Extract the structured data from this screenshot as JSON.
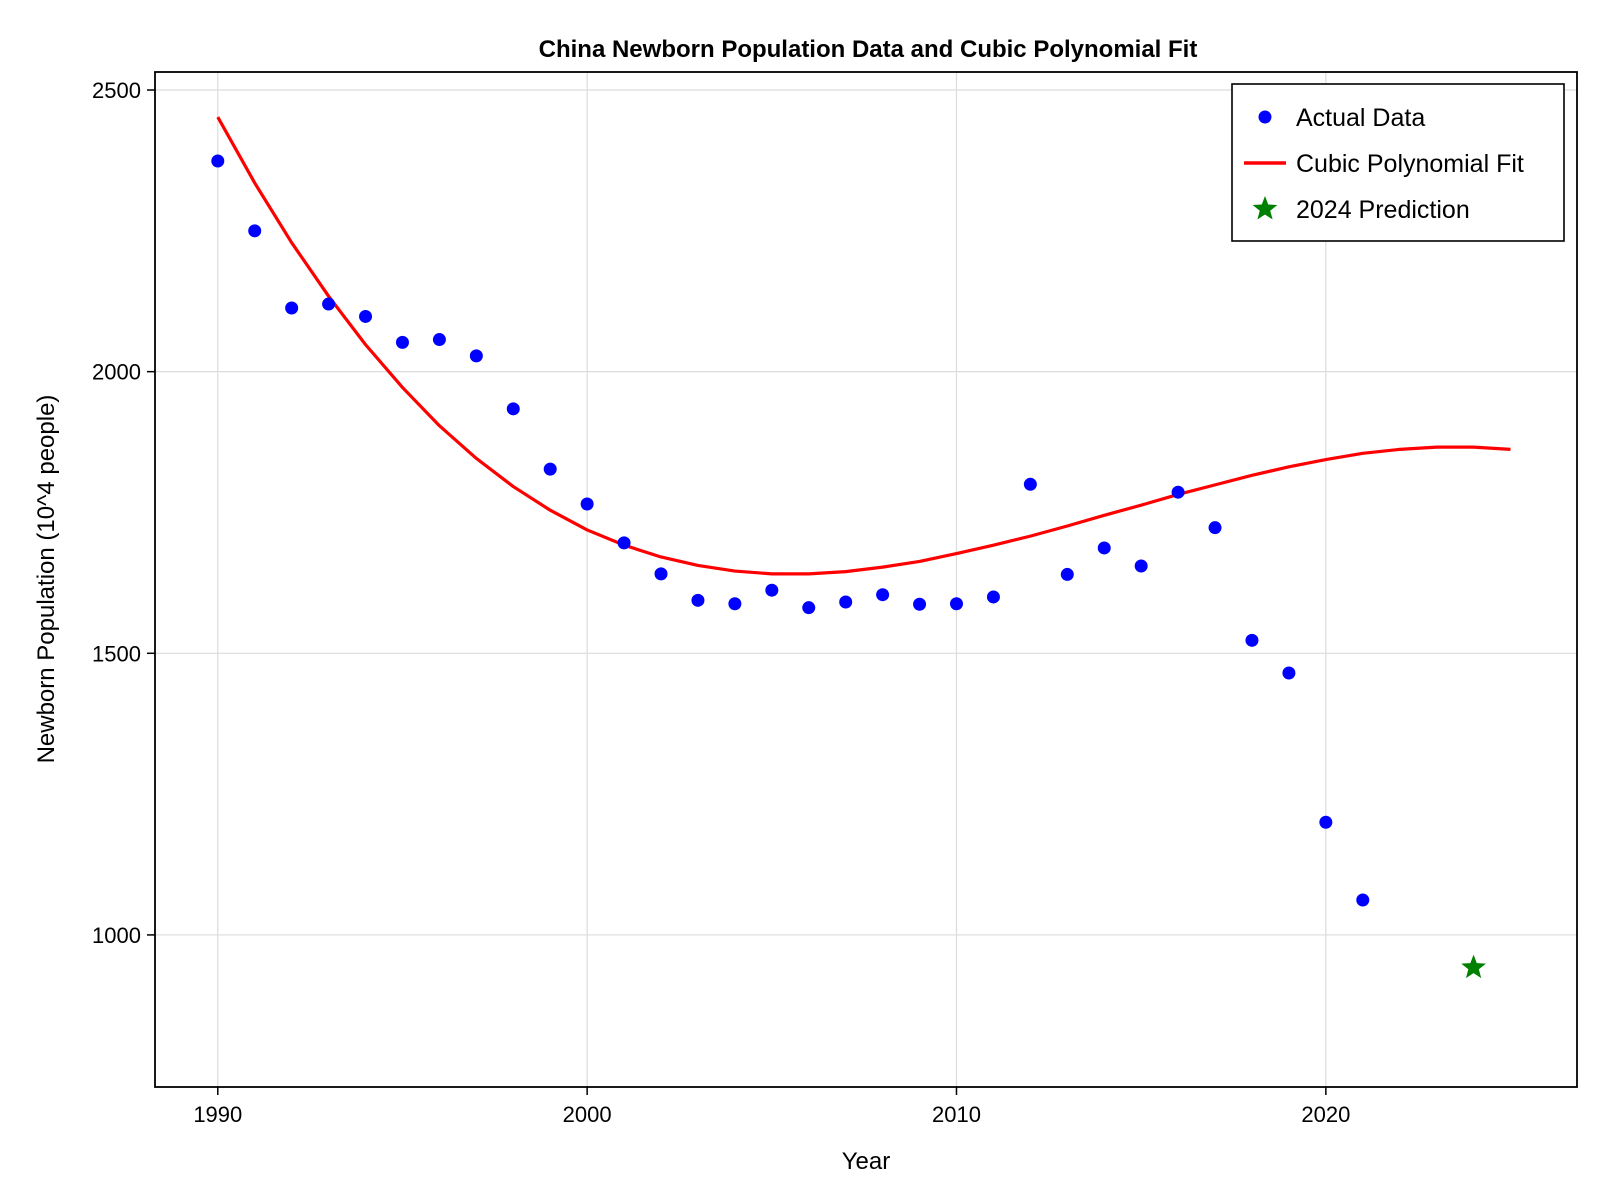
{
  "chart_data": {
    "type": "scatter",
    "title": "China Newborn Population Data and Cubic Polynomial Fit",
    "xlabel": "Year",
    "ylabel": "Newborn Population (10^4 people)",
    "xlim": [
      1988.3,
      2026.8
    ],
    "ylim": [
      730,
      2532
    ],
    "x_ticks": [
      1990,
      2000,
      2010,
      2020
    ],
    "y_ticks": [
      1000,
      1500,
      2000,
      2500
    ],
    "grid": true,
    "legend_position": "top-right",
    "colors": {
      "actual": "#0000ff",
      "fit": "#ff0000",
      "prediction": "#008000"
    },
    "series": [
      {
        "name": "Actual Data",
        "mark": "circle",
        "x": [
          1990,
          1991,
          1992,
          1993,
          1994,
          1995,
          1996,
          1997,
          1998,
          1999,
          2000,
          2001,
          2002,
          2003,
          2004,
          2005,
          2006,
          2007,
          2008,
          2009,
          2010,
          2011,
          2012,
          2013,
          2014,
          2015,
          2016,
          2017,
          2018,
          2019,
          2020,
          2021
        ],
        "y": [
          2374,
          2250,
          2113,
          2120,
          2098,
          2052,
          2057,
          2028,
          1934,
          1827,
          1765,
          1696,
          1641,
          1594,
          1588,
          1612,
          1581,
          1591,
          1604,
          1587,
          1588,
          1600,
          1800,
          1640,
          1687,
          1655,
          1786,
          1723,
          1523,
          1465,
          1200,
          1062
        ]
      },
      {
        "name": "Cubic Polynomial Fit",
        "mark": "line",
        "x": [
          1990,
          1991,
          1992,
          1993,
          1994,
          1995,
          1996,
          1997,
          1998,
          1999,
          2000,
          2001,
          2002,
          2003,
          2004,
          2005,
          2006,
          2007,
          2008,
          2009,
          2010,
          2011,
          2012,
          2013,
          2014,
          2015,
          2016,
          2017,
          2018,
          2019,
          2020,
          2021,
          2022,
          2023,
          2024,
          2025
        ],
        "y": [
          2452,
          2335,
          2229,
          2134,
          2048,
          1972,
          1904,
          1846,
          1796,
          1754,
          1719,
          1692,
          1671,
          1656,
          1646,
          1641,
          1641,
          1645,
          1653,
          1663,
          1677,
          1692,
          1708,
          1726,
          1745,
          1763,
          1782,
          1799,
          1816,
          1831,
          1844,
          1855,
          1862,
          1866,
          1866,
          1862
        ]
      },
      {
        "name": "2024 Prediction",
        "mark": "star",
        "x": [
          2024
        ],
        "y": [
          942
        ]
      }
    ]
  }
}
